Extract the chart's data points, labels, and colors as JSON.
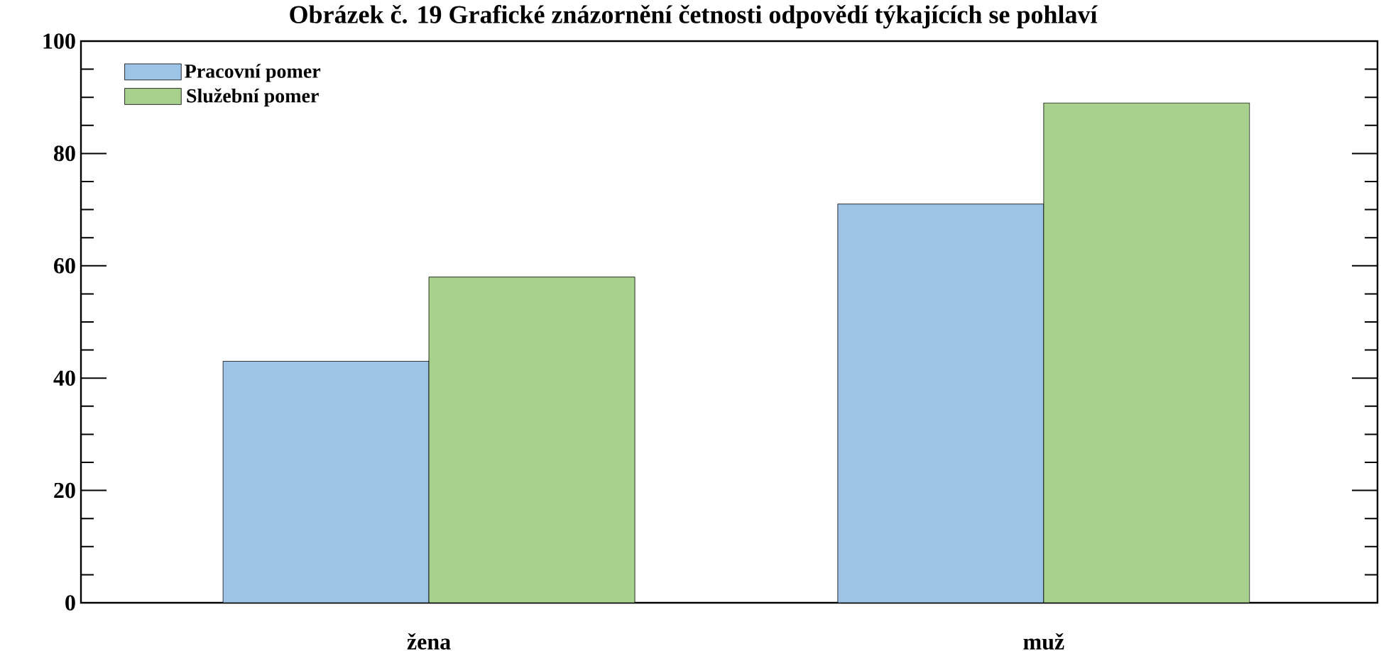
{
  "chart_data": {
    "type": "bar",
    "title": "Obrázek č. 19 Grafické znázornění četnosti odpovědí týkajících se pohlaví",
    "categories": [
      "žena",
      "muž"
    ],
    "series": [
      {
        "name": "Pracovní pomer",
        "color": "#9dc3e6",
        "values": [
          43,
          71
        ]
      },
      {
        "name": "Služební pomer",
        "color": "#a9d18e",
        "values": [
          58,
          89
        ]
      }
    ],
    "ylim": [
      0,
      100
    ],
    "yticks": [
      0,
      20,
      40,
      60,
      80,
      100
    ],
    "grid": false,
    "legend": "top left"
  }
}
